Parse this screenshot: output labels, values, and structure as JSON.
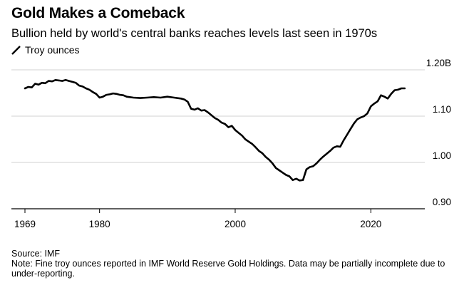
{
  "chart_data": {
    "type": "line",
    "title": "Gold Makes a Comeback",
    "subtitle": "Bullion held by world's central banks reaches levels last seen in 1970s",
    "legend": [
      {
        "name": "Troy ounces",
        "color": "#000000"
      }
    ],
    "xlabel": "",
    "ylabel": "",
    "xlim": [
      1968,
      2030
    ],
    "ylim": [
      0.9,
      1.2
    ],
    "x_ticks": [
      {
        "value": 1969,
        "label": "1969"
      },
      {
        "value": 1980,
        "label": "1980"
      },
      {
        "value": 2000,
        "label": "2000"
      },
      {
        "value": 2020,
        "label": "2020"
      }
    ],
    "y_ticks": [
      {
        "value": 1.2,
        "label": "1.20B"
      },
      {
        "value": 1.1,
        "label": "1.10"
      },
      {
        "value": 1.0,
        "label": "1.00"
      },
      {
        "value": 0.9,
        "label": "0.90"
      }
    ],
    "grid": true,
    "series": [
      {
        "name": "Troy ounces",
        "color": "#000000",
        "x": [
          1969.0,
          1969.5,
          1970.0,
          1970.5,
          1971.0,
          1971.5,
          1972.0,
          1972.5,
          1973.0,
          1973.5,
          1974.0,
          1974.5,
          1975.0,
          1975.5,
          1976.0,
          1976.5,
          1977.0,
          1977.5,
          1978.0,
          1978.5,
          1979.0,
          1979.5,
          1980.0,
          1980.5,
          1981.0,
          1981.5,
          1982.0,
          1982.5,
          1983.0,
          1983.5,
          1984.0,
          1985.0,
          1986.0,
          1987.0,
          1988.0,
          1989.0,
          1990.0,
          1991.0,
          1992.0,
          1992.5,
          1993.0,
          1993.5,
          1994.0,
          1994.5,
          1995.0,
          1995.5,
          1996.0,
          1996.5,
          1997.0,
          1997.5,
          1998.0,
          1998.5,
          1999.0,
          1999.5,
          2000.0,
          2000.5,
          2001.0,
          2001.5,
          2002.0,
          2002.5,
          2003.0,
          2003.5,
          2004.0,
          2004.5,
          2005.0,
          2005.5,
          2006.0,
          2006.5,
          2007.0,
          2007.5,
          2008.0,
          2008.5,
          2009.0,
          2009.5,
          2010.0,
          2010.5,
          2011.0,
          2011.5,
          2012.0,
          2012.5,
          2013.0,
          2013.5,
          2014.0,
          2014.5,
          2015.0,
          2015.5,
          2016.0,
          2016.5,
          2017.0,
          2017.5,
          2018.0,
          2018.5,
          2019.0,
          2019.5,
          2020.0,
          2020.5,
          2021.0,
          2021.5,
          2022.0,
          2022.5,
          2023.0,
          2023.5,
          2024.0,
          2024.5,
          2025.0
        ],
        "values": [
          1.16,
          1.163,
          1.162,
          1.17,
          1.168,
          1.172,
          1.171,
          1.176,
          1.175,
          1.178,
          1.177,
          1.176,
          1.178,
          1.176,
          1.174,
          1.172,
          1.166,
          1.164,
          1.16,
          1.157,
          1.152,
          1.148,
          1.14,
          1.142,
          1.146,
          1.147,
          1.149,
          1.148,
          1.146,
          1.145,
          1.142,
          1.14,
          1.139,
          1.14,
          1.141,
          1.14,
          1.142,
          1.14,
          1.138,
          1.136,
          1.131,
          1.116,
          1.114,
          1.117,
          1.112,
          1.113,
          1.108,
          1.102,
          1.096,
          1.092,
          1.086,
          1.083,
          1.076,
          1.079,
          1.07,
          1.064,
          1.058,
          1.05,
          1.045,
          1.04,
          1.033,
          1.025,
          1.02,
          1.012,
          1.006,
          0.998,
          0.988,
          0.983,
          0.978,
          0.973,
          0.97,
          0.962,
          0.965,
          0.961,
          0.962,
          0.985,
          0.99,
          0.992,
          0.998,
          1.006,
          1.013,
          1.019,
          1.025,
          1.032,
          1.035,
          1.034,
          1.048,
          1.06,
          1.072,
          1.084,
          1.093,
          1.097,
          1.1,
          1.106,
          1.121,
          1.127,
          1.132,
          1.145,
          1.142,
          1.138,
          1.148,
          1.156,
          1.157,
          1.16,
          1.16
        ]
      }
    ]
  },
  "footer": {
    "source": "Source: IMF",
    "note": "Note: Fine troy ounces reported in IMF World Reserve Gold Holdings. Data may be partially incomplete due to under-reporting."
  }
}
